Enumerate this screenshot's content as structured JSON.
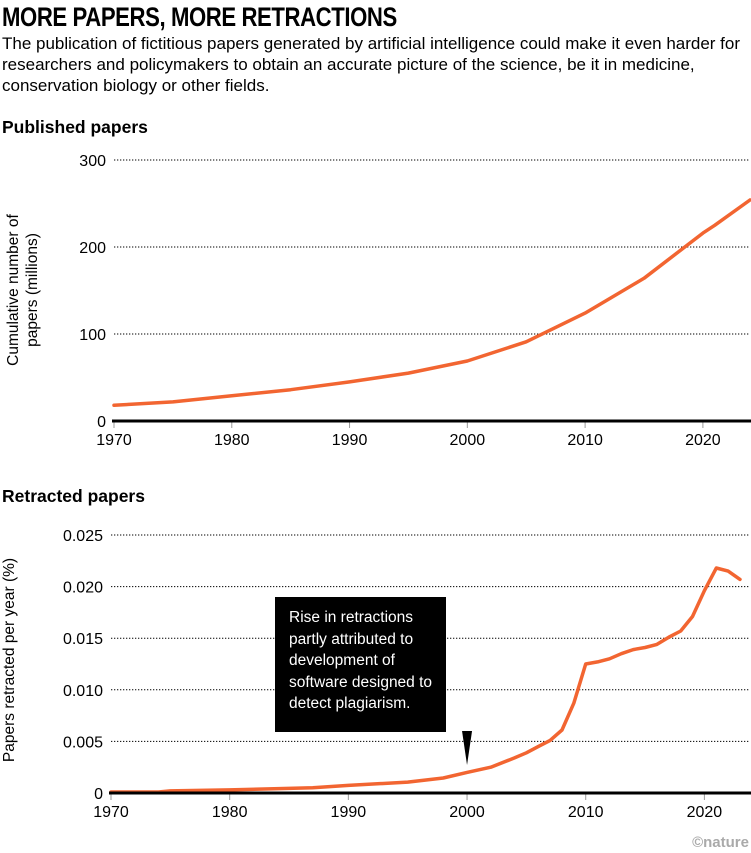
{
  "title": "MORE PAPERS, MORE RETRACTIONS",
  "subtitle": "The publication of fictitious papers generated by artificial intelligence could make it even harder for researchers and policymakers to obtain an accurate picture of the science, be it in medicine, conservation biology or other fields.",
  "credit": "©nature",
  "colors": {
    "line": "#f26531",
    "annotation_bg": "#000000"
  },
  "chart_data": [
    {
      "type": "line",
      "title": "Published papers",
      "xlabel": "",
      "ylabel": "Cumulative number of papers (millions)",
      "ylabel_lines": [
        "Cumulative number of",
        "papers (millions)"
      ],
      "xlim": [
        1970,
        2024
      ],
      "ylim": [
        0,
        300
      ],
      "xticks": [
        "1970",
        "1980",
        "1990",
        "2000",
        "2010",
        "2020"
      ],
      "yticks": [
        "0",
        "100",
        "200",
        "300"
      ],
      "grid": true,
      "x": [
        1970,
        1975,
        1980,
        1985,
        1990,
        1995,
        2000,
        2005,
        2010,
        2015,
        2020,
        2021,
        2024
      ],
      "values": [
        18,
        22,
        29,
        36,
        45,
        55,
        69,
        91,
        124,
        164,
        216,
        225,
        254
      ]
    },
    {
      "type": "line",
      "title": "Retracted papers",
      "xlabel": "",
      "ylabel": "Papers retracted  per year (%)",
      "xlim": [
        1970,
        2023
      ],
      "ylim": [
        0,
        0.025
      ],
      "xticks": [
        "1970",
        "1980",
        "1990",
        "2000",
        "2010",
        "2020"
      ],
      "yticks": [
        "0",
        "0.005",
        "0.010",
        "0.015",
        "0.020",
        "0.025"
      ],
      "grid": true,
      "x": [
        1970,
        1974,
        1975,
        1980,
        1985,
        1987,
        1990,
        1995,
        1998,
        2000,
        2002,
        2004,
        2005,
        2006,
        2007,
        2008,
        2009,
        2010,
        2011,
        2012,
        2013,
        2014,
        2015,
        2016,
        2017,
        2018,
        2019,
        2020,
        2021,
        2022,
        2023
      ],
      "values": [
        0.0001,
        0.0001,
        0.0002,
        0.0003,
        0.00045,
        0.0005,
        0.00074,
        0.00106,
        0.00145,
        0.002,
        0.0025,
        0.0034,
        0.0039,
        0.0045,
        0.0051,
        0.0061,
        0.0087,
        0.0125,
        0.0127,
        0.013,
        0.0135,
        0.0139,
        0.0141,
        0.0144,
        0.0151,
        0.0157,
        0.0171,
        0.0196,
        0.0218,
        0.0215,
        0.0207
      ],
      "annotation": {
        "x": 2000,
        "lines": [
          "Rise in retractions",
          "partly attributed to",
          "development of",
          "software designed to",
          "detect plagiarism."
        ]
      }
    }
  ]
}
